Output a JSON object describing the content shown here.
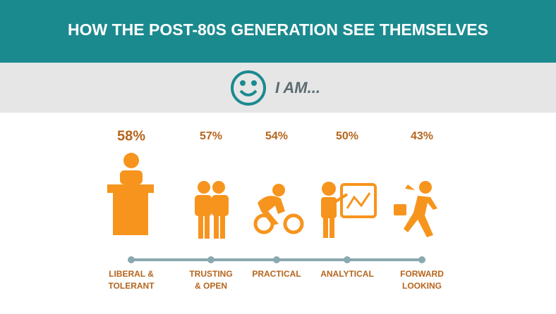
{
  "header": {
    "title": "HOW THE POST-80S GENERATION SEE THEMSELVES"
  },
  "banner": {
    "text": "I AM..."
  },
  "items": [
    {
      "percent": "58%",
      "label": [
        "LIBERAL &",
        "TOLERANT"
      ]
    },
    {
      "percent": "57%",
      "label": [
        "TRUSTING",
        "& OPEN"
      ]
    },
    {
      "percent": "54%",
      "label": [
        "PRACTICAL"
      ]
    },
    {
      "percent": "50%",
      "label": [
        "ANALYTICAL"
      ]
    },
    {
      "percent": "43%",
      "label": [
        "FORWARD",
        "LOOKING"
      ]
    }
  ]
}
